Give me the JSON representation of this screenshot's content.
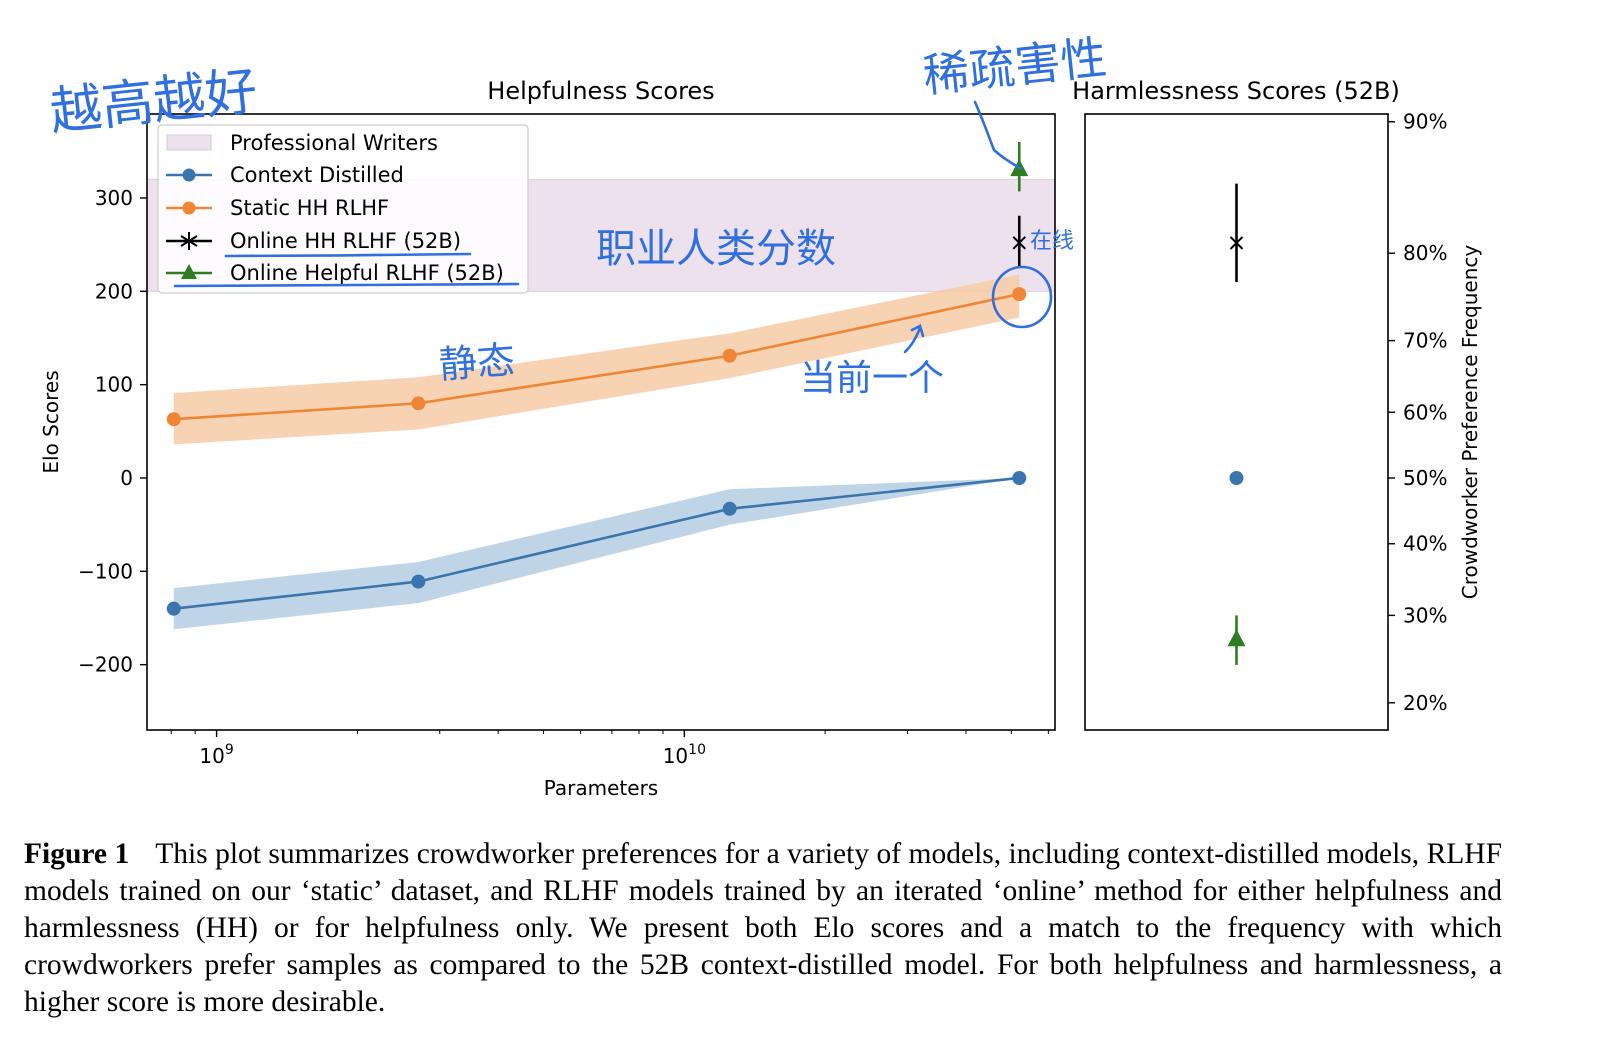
{
  "colors": {
    "context_distilled": "#3a75ad",
    "context_band": "#b4cce2",
    "static_hh": "#ef8635",
    "static_band": "#f7cba6",
    "professional_band": "#ede1ee",
    "online_hh": "#000000",
    "online_helpful": "#2e7d22",
    "handwriting": "#2f6fe0"
  },
  "chart_data": [
    {
      "type": "line",
      "title": "Helpfulness Scores",
      "xlabel": "Parameters",
      "ylabel": "Elo Scores",
      "xscale": "log",
      "xlim": [
        710000000.0,
        62000000000.0
      ],
      "ylim": [
        -270,
        390
      ],
      "x_tick_labels": [
        "10^9",
        "10^10"
      ],
      "x_tick_values": [
        1000000000.0,
        10000000000.0
      ],
      "y_tick_values": [
        -200,
        -100,
        0,
        100,
        200,
        300
      ],
      "y_tick_labels": [
        "−200",
        "−100",
        "0",
        "100",
        "200",
        "300"
      ],
      "grid": false,
      "legend_position": "upper-left",
      "bands": [
        {
          "name": "Professional Writers",
          "ymin": 200,
          "ymax": 320
        }
      ],
      "series": [
        {
          "name": "Context Distilled",
          "x": [
            810000000.0,
            2700000000.0,
            12500000000.0,
            52000000000.0
          ],
          "y": [
            -140,
            -111,
            -33,
            0
          ],
          "band_low": [
            -162,
            -134,
            -50,
            0
          ],
          "band_high": [
            -118,
            -90,
            -12,
            0
          ]
        },
        {
          "name": "Static HH RLHF",
          "x": [
            810000000.0,
            2700000000.0,
            12500000000.0,
            52000000000.0
          ],
          "y": [
            63,
            80,
            131,
            197
          ],
          "band_low": [
            36,
            52,
            107,
            172
          ],
          "band_high": [
            91,
            108,
            155,
            218
          ]
        },
        {
          "name": "Online HH RLHF (52B)",
          "x": [
            52000000000.0
          ],
          "y": [
            252
          ],
          "err_low": 227,
          "err_high": 281
        },
        {
          "name": "Online Helpful RLHF (52B)",
          "x": [
            52000000000.0
          ],
          "y": [
            331
          ],
          "err_low": 307,
          "err_high": 360
        }
      ]
    },
    {
      "type": "scatter",
      "title": "Harmlessness Scores (52B)",
      "ylabel": "Crowdworker Preference Frequency",
      "ylim_elo": [
        -270,
        390
      ],
      "y_tick_labels": [
        "20%",
        "30%",
        "40%",
        "50%",
        "60%",
        "70%",
        "80%",
        "90%"
      ],
      "y_tick_values": [
        0.2,
        0.3,
        0.4,
        0.5,
        0.6,
        0.7,
        0.8,
        0.9
      ],
      "series": [
        {
          "name": "Online HH RLHF (52B)",
          "y": 0.81,
          "err_low": 0.77,
          "err_high": 0.86
        },
        {
          "name": "Context Distilled",
          "y": 0.5
        },
        {
          "name": "Online Helpful RLHF (52B)",
          "y": 0.27,
          "err_low": 0.24,
          "err_high": 0.3
        }
      ]
    }
  ],
  "annotations": [
    {
      "text": "越高越好"
    },
    {
      "text": "稀疏害性"
    },
    {
      "text": "职业人类分数"
    },
    {
      "text": "在线"
    },
    {
      "text": "静态"
    },
    {
      "text": "当前一个"
    }
  ],
  "caption": {
    "label": "Figure 1",
    "text": "This plot summarizes crowdworker preferences for a variety of models, including context-distilled models, RLHF models trained on our ‘static’ dataset, and RLHF models trained by an iterated ‘online’ method for either helpfulness and harmlessness (HH) or for helpfulness only. We present both Elo scores and a match to the frequency with which crowdworkers prefer samples as compared to the 52B context-distilled model. For both helpfulness and harmlessness, a higher score is more desirable."
  }
}
